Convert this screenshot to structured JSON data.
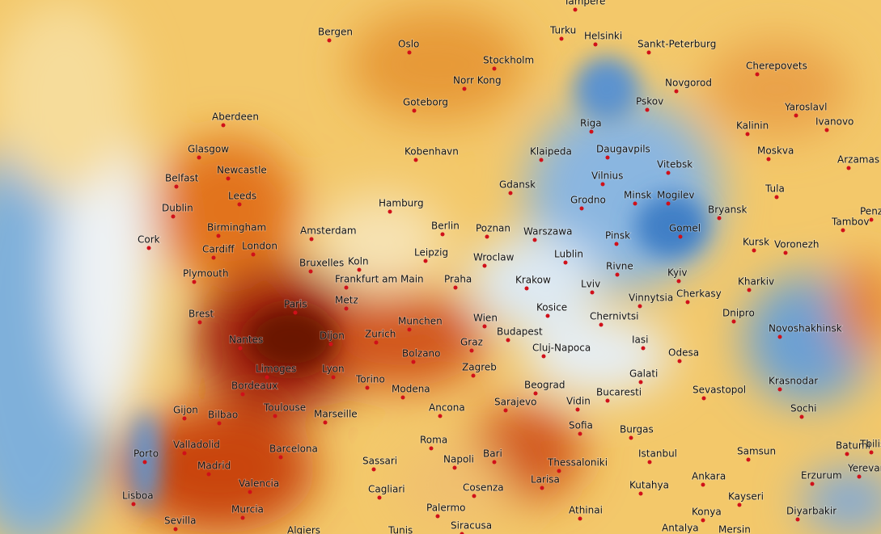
{
  "cities": [
    "Tampere",
    "Bergen",
    "Turku",
    "Helsinki",
    "Oslo",
    "Sankt-Peterburg",
    "Stockholm",
    "Cherepovets",
    "Norr Kong",
    "Novgorod",
    "Pskov",
    "Goteborg",
    "Yaroslavl",
    "Aberdeen",
    "Riga",
    "Kalinin",
    "Ivanovo",
    "Glasgow",
    "Kobenhavn",
    "Klaipeda",
    "Daugavpils",
    "Moskva",
    "Arzamas",
    "Vitebsk",
    "Newcastle",
    "Belfast",
    "Vilnius",
    "Gdansk",
    "Tula",
    "Leeds",
    "Dublin",
    "Minsk",
    "Mogilev",
    "Hamburg",
    "Grodno",
    "Bryansk",
    "Penz",
    "Tambov",
    "Berlin",
    "Birmingham",
    "Poznan",
    "Warszawa",
    "Gomel",
    "Amsterdam",
    "Pinsk",
    "Cork",
    "Kursk",
    "Voronezh",
    "London",
    "Cardiff",
    "Leipzig",
    "Lublin",
    "Wroclaw",
    "Bruxelles",
    "Koln",
    "Rivne",
    "Kyiv",
    "Plymouth",
    "Frankfurt am Main",
    "Praha",
    "Krakow",
    "Lviv",
    "Kharkiv",
    "Cherkasy",
    "Vinnytsia",
    "Paris",
    "Metz",
    "Kosice",
    "Brest",
    "Chernivtsi",
    "Dnipro",
    "Munchen",
    "Wien",
    "Novoshakhinsk",
    "Nantes",
    "Dijon",
    "Zurich",
    "Budapest",
    "Graz",
    "Iasi",
    "Cluj-Napoca",
    "Odesa",
    "Bolzano",
    "Limoges",
    "Lyon",
    "Zagreb",
    "Galati",
    "Torino",
    "Krasnodar",
    "Beograd",
    "Bordeaux",
    "Modena",
    "Sevastopol",
    "Bucaresti",
    "Vidin",
    "Toulouse",
    "Sarajevo",
    "Marseille",
    "Ancona",
    "Sochi",
    "Gijon",
    "Bilbao",
    "Sofia",
    "Burgas",
    "Valladolid",
    "Barcelona",
    "Roma",
    "Batumi",
    "Tbilisi",
    "Istanbul",
    "Samsun",
    "Porto",
    "Bari",
    "Napoli",
    "Madrid",
    "Sassari",
    "Thessaloniki",
    "Yerevan",
    "Ankara",
    "Erzurum",
    "Larisa",
    "Valencia",
    "Kutahya",
    "Cosenza",
    "Cagliari",
    "Lisboa",
    "Kayseri",
    "Palermo",
    "Athinai",
    "Murcia",
    "Diyarbakir",
    "Konya",
    "Sevilla",
    "Siracusa",
    "Antalya",
    "Mersin",
    "Algiers",
    "Tunis"
  ]
}
